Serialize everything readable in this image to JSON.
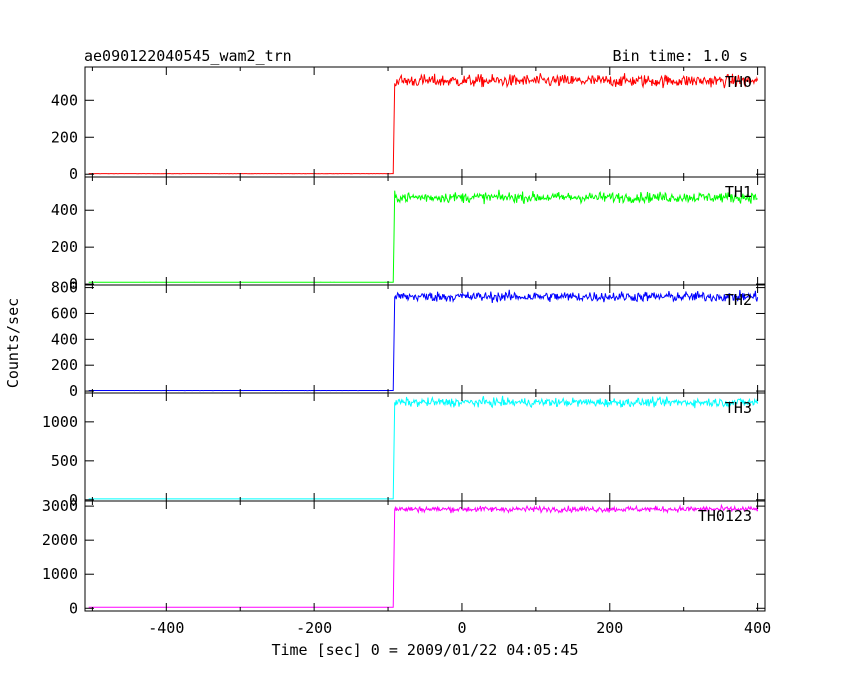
{
  "chart_data": {
    "type": "line",
    "title": "ae090122040545_wam2_trn",
    "subtitle": "Bin time: 1.0 s",
    "xlabel": "Time [sec] 0 = 2009/01/22 04:05:45",
    "ylabel": "Counts/sec",
    "xlim": [
      -510,
      410
    ],
    "x_ticks": [
      -400,
      -200,
      0,
      200,
      400
    ],
    "trigger_time": -92,
    "x_end": 400,
    "grid": false,
    "panels": [
      {
        "name": "TH0",
        "color": "#ff0000",
        "pre_level": 3,
        "post_level": 505,
        "noise": 24,
        "ylim": [
          -15,
          580
        ],
        "y_ticks": [
          0,
          200,
          400
        ]
      },
      {
        "name": "TH1",
        "color": "#00ff00",
        "pre_level": 10,
        "post_level": 470,
        "noise": 20,
        "ylim": [
          -5,
          580
        ],
        "y_ticks": [
          0,
          200,
          400
        ]
      },
      {
        "name": "TH2",
        "color": "#0000ff",
        "pre_level": 4,
        "post_level": 730,
        "noise": 28,
        "ylim": [
          -15,
          820
        ],
        "y_ticks": [
          0,
          200,
          400,
          600,
          800
        ]
      },
      {
        "name": "TH3",
        "color": "#00ffff",
        "pre_level": 12,
        "post_level": 1250,
        "noise": 40,
        "ylim": [
          -15,
          1370
        ],
        "y_ticks": [
          0,
          500,
          1000
        ]
      },
      {
        "name": "TH0123",
        "color": "#ff00ff",
        "pre_level": 30,
        "post_level": 2910,
        "noise": 60,
        "ylim": [
          -80,
          3150
        ],
        "y_ticks": [
          0,
          1000,
          2000,
          3000
        ]
      }
    ]
  }
}
